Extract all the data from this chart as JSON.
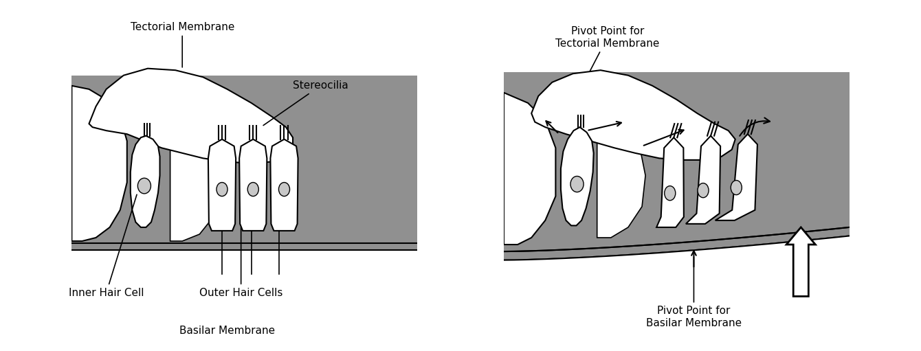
{
  "bg_color": "#ffffff",
  "gray_color": "#909090",
  "white": "#ffffff",
  "black": "#000000",
  "figsize": [
    13.4,
    5.11
  ],
  "dpi": 100,
  "labels": {
    "tectorial_membrane": "Tectorial Membrane",
    "stereocilia": "Stereocilia",
    "inner_hair_cell": "Inner Hair Cell",
    "outer_hair_cells": "Outer Hair Cells",
    "basilar_membrane": "Basilar Membrane",
    "pivot_tectorial": "Pivot Point for\nTectorial Membrane",
    "pivot_basilar": "Pivot Point for\nBasilar Membrane"
  }
}
